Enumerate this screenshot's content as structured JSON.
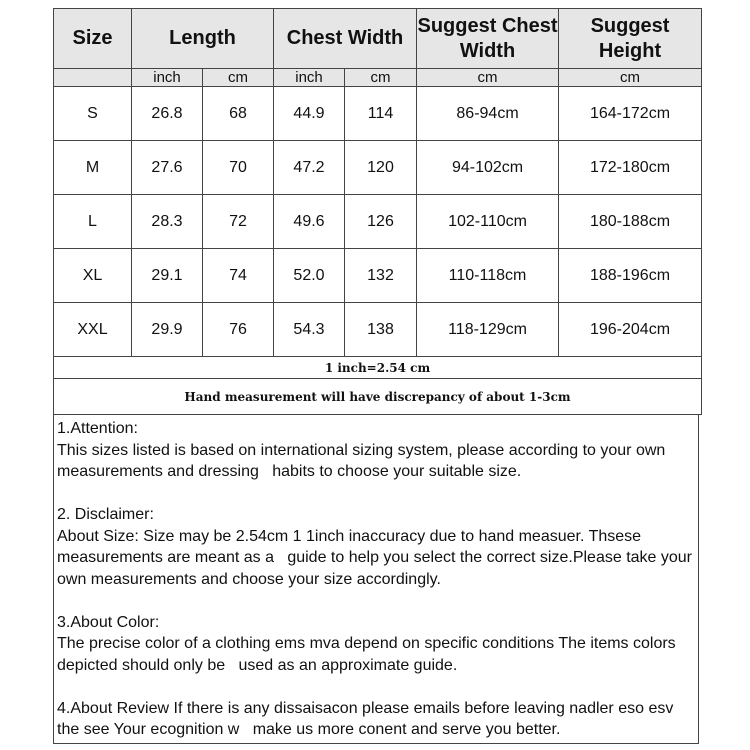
{
  "header": {
    "size": "Size",
    "length": "Length",
    "chest_width": "Chest Width",
    "suggest_chest_width": "Suggest Chest Width",
    "suggest_height": "Suggest Height"
  },
  "units": {
    "length_inch": "inch",
    "length_cm": "cm",
    "chest_inch": "inch",
    "chest_cm": "cm",
    "suggest_chest": "cm",
    "suggest_height": "cm"
  },
  "rows": [
    {
      "size": "S",
      "length_inch": "26.8",
      "length_cm": "68",
      "chest_inch": "44.9",
      "chest_cm": "114",
      "suggest_chest": "86-94cm",
      "suggest_height": "164-172cm"
    },
    {
      "size": "M",
      "length_inch": "27.6",
      "length_cm": "70",
      "chest_inch": "47.2",
      "chest_cm": "120",
      "suggest_chest": "94-102cm",
      "suggest_height": "172-180cm"
    },
    {
      "size": "L",
      "length_inch": "28.3",
      "length_cm": "72",
      "chest_inch": "49.6",
      "chest_cm": "126",
      "suggest_chest": "102-110cm",
      "suggest_height": "180-188cm"
    },
    {
      "size": "XL",
      "length_inch": "29.1",
      "length_cm": "74",
      "chest_inch": "52.0",
      "chest_cm": "132",
      "suggest_chest": "110-118cm",
      "suggest_height": "188-196cm"
    },
    {
      "size": "XXL",
      "length_inch": "29.9",
      "length_cm": "76",
      "chest_inch": "54.3",
      "chest_cm": "138",
      "suggest_chest": "118-129cm",
      "suggest_height": "196-204cm"
    }
  ],
  "conversion_note": "1 inch=2.54 cm",
  "measurement_note": "Hand measurement will have discrepancy of about 1-3cm",
  "notes": [
    "1.Attention:\nThis sizes listed is based on international sizing system, please according to your own measurements and dressing   habits to choose your suitable size.",
    "2. Disclaimer:\nAbout Size: Size may be 2.54cm 1 1inch inaccuracy due to hand measuer. Thsese measurements are meant as a   guide to help you select the correct size.Please take your own measurements and choose your size accordingly.",
    "3.About Color:\nThe precise color of a clothing ems mva depend on specific conditions The items colors depicted should only be   used as an approximate guide.",
    "4.About Review If there is any dissaisacon please emails before leaving nadler eso esv the see Your ecognition w   make us more conent and serve you better."
  ]
}
